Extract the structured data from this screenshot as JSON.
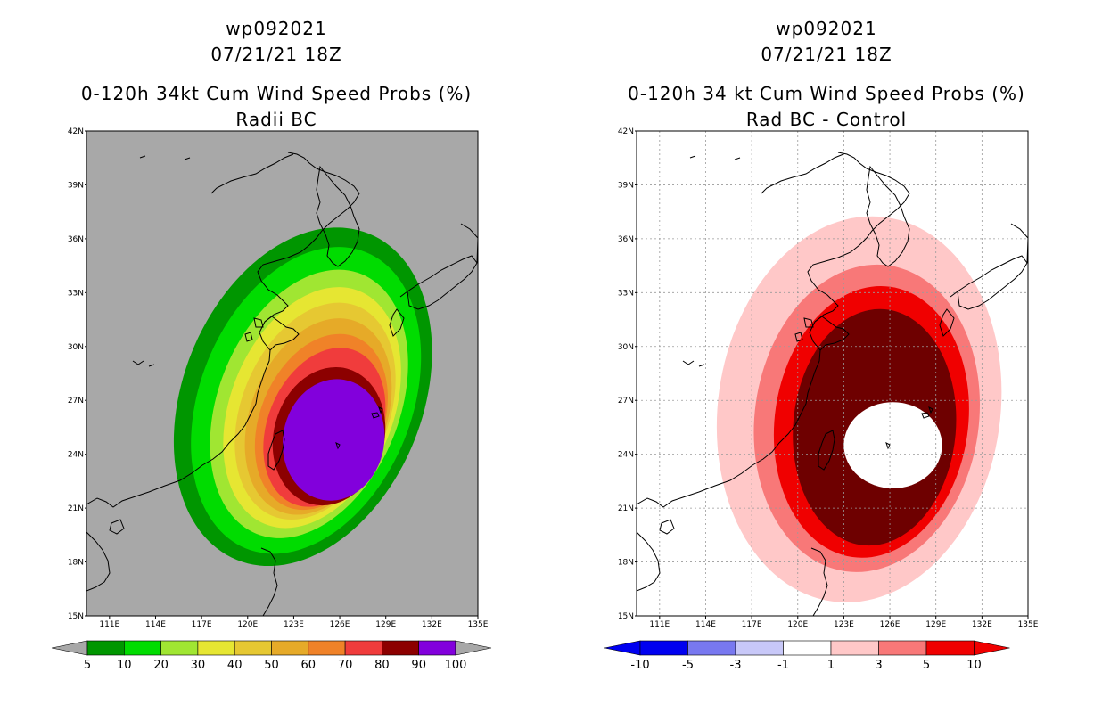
{
  "colors": {
    "land_gray": "#a8a8a8",
    "prob": [
      "#009600",
      "#00dc00",
      "#a0e632",
      "#e6e632",
      "#e6c832",
      "#e6aa28",
      "#f08228",
      "#f03c3c",
      "#8c0000",
      "#8200dc"
    ],
    "diff": [
      "#0000a0",
      "#0000f0",
      "#7878f0",
      "#c8c8f8",
      "#ffffff",
      "#ffc8c8",
      "#f87878",
      "#f00000",
      "#6e0000"
    ]
  },
  "left": {
    "title_lines": [
      "wp092021",
      "07/21/21 18Z",
      "0-120h 34kt Cum Wind Speed Probs (%)",
      "Radii BC"
    ],
    "colorbar_labels": [
      "5",
      "10",
      "20",
      "30",
      "40",
      "50",
      "60",
      "70",
      "80",
      "90",
      "100"
    ]
  },
  "right": {
    "title_lines": [
      "wp092021",
      "07/21/21 18Z",
      "0-120h 34 kt Cum Wind Speed Probs (%)",
      "Rad BC - Control"
    ],
    "colorbar_labels": [
      "-10",
      "-5",
      "-3",
      "-1",
      "1",
      "3",
      "5",
      "10"
    ]
  },
  "chart_data": [
    {
      "type": "heatmap",
      "title": "0-120h 34kt Cum Wind Speed Probs (%)",
      "subtitle": "Radii BC",
      "header": [
        "wp092021",
        "07/21/21 18Z"
      ],
      "lon_ticks": [
        "111E",
        "114E",
        "117E",
        "120E",
        "123E",
        "126E",
        "129E",
        "132E",
        "135E"
      ],
      "lat_ticks": [
        "15N",
        "18N",
        "21N",
        "24N",
        "27N",
        "30N",
        "33N",
        "36N",
        "39N",
        "42N"
      ],
      "xlim": [
        109.5,
        135
      ],
      "ylim": [
        15,
        42
      ],
      "levels": [
        5,
        10,
        20,
        30,
        40,
        50,
        60,
        70,
        80,
        90,
        100
      ],
      "contours": [
        {
          "level": 5,
          "cx": 123.6,
          "cy": 27.2,
          "rx": 7.8,
          "ry": 9.8,
          "rot": 22
        },
        {
          "level": 10,
          "cx": 123.8,
          "cy": 27.0,
          "rx": 6.9,
          "ry": 8.9,
          "rot": 22
        },
        {
          "level": 20,
          "cx": 124.0,
          "cy": 26.8,
          "rx": 5.9,
          "ry": 7.8,
          "rot": 22
        },
        {
          "level": 30,
          "cx": 124.2,
          "cy": 26.6,
          "rx": 5.3,
          "ry": 7.0,
          "rot": 22
        },
        {
          "level": 40,
          "cx": 124.4,
          "cy": 26.4,
          "rx": 4.8,
          "ry": 6.3,
          "rot": 22
        },
        {
          "level": 50,
          "cx": 124.6,
          "cy": 26.1,
          "rx": 4.4,
          "ry": 5.7,
          "rot": 22
        },
        {
          "level": 60,
          "cx": 124.8,
          "cy": 25.8,
          "rx": 4.0,
          "ry": 5.1,
          "rot": 22
        },
        {
          "level": 70,
          "cx": 125.0,
          "cy": 25.5,
          "rx": 3.7,
          "ry": 4.6,
          "rot": 22
        },
        {
          "level": 80,
          "cx": 125.3,
          "cy": 25.0,
          "rx": 3.6,
          "ry": 3.9,
          "rot": 15
        },
        {
          "level": 90,
          "cx": 125.6,
          "cy": 24.8,
          "rx": 3.3,
          "ry": 3.4,
          "rot": 10
        }
      ]
    },
    {
      "type": "heatmap",
      "title": "0-120h 34 kt Cum Wind Speed Probs (%)",
      "subtitle": "Rad BC - Control",
      "header": [
        "wp092021",
        "07/21/21 18Z"
      ],
      "lon_ticks": [
        "111E",
        "114E",
        "117E",
        "120E",
        "123E",
        "126E",
        "129E",
        "132E",
        "135E"
      ],
      "lat_ticks": [
        "15N",
        "18N",
        "21N",
        "24N",
        "27N",
        "30N",
        "33N",
        "36N",
        "39N",
        "42N"
      ],
      "xlim": [
        109.5,
        135
      ],
      "ylim": [
        15,
        42
      ],
      "levels": [
        -10,
        -5,
        -3,
        -1,
        1,
        3,
        5,
        10
      ],
      "contours": [
        {
          "level": 1,
          "cx": 124.0,
          "cy": 26.5,
          "rx": 9.2,
          "ry": 10.8,
          "rot": 8
        },
        {
          "level": 3,
          "cx": 124.5,
          "cy": 26.0,
          "rx": 7.3,
          "ry": 8.6,
          "rot": 8
        },
        {
          "level": 5,
          "cx": 124.8,
          "cy": 25.8,
          "rx": 6.3,
          "ry": 7.6,
          "rot": 8
        },
        {
          "level": 10,
          "cx": 125.0,
          "cy": 25.5,
          "rx": 5.3,
          "ry": 6.6,
          "rot": 5
        },
        {
          "level": -1,
          "cx": 126.2,
          "cy": 24.5,
          "rx": 3.2,
          "ry": 2.4,
          "rot": 0
        }
      ]
    }
  ]
}
